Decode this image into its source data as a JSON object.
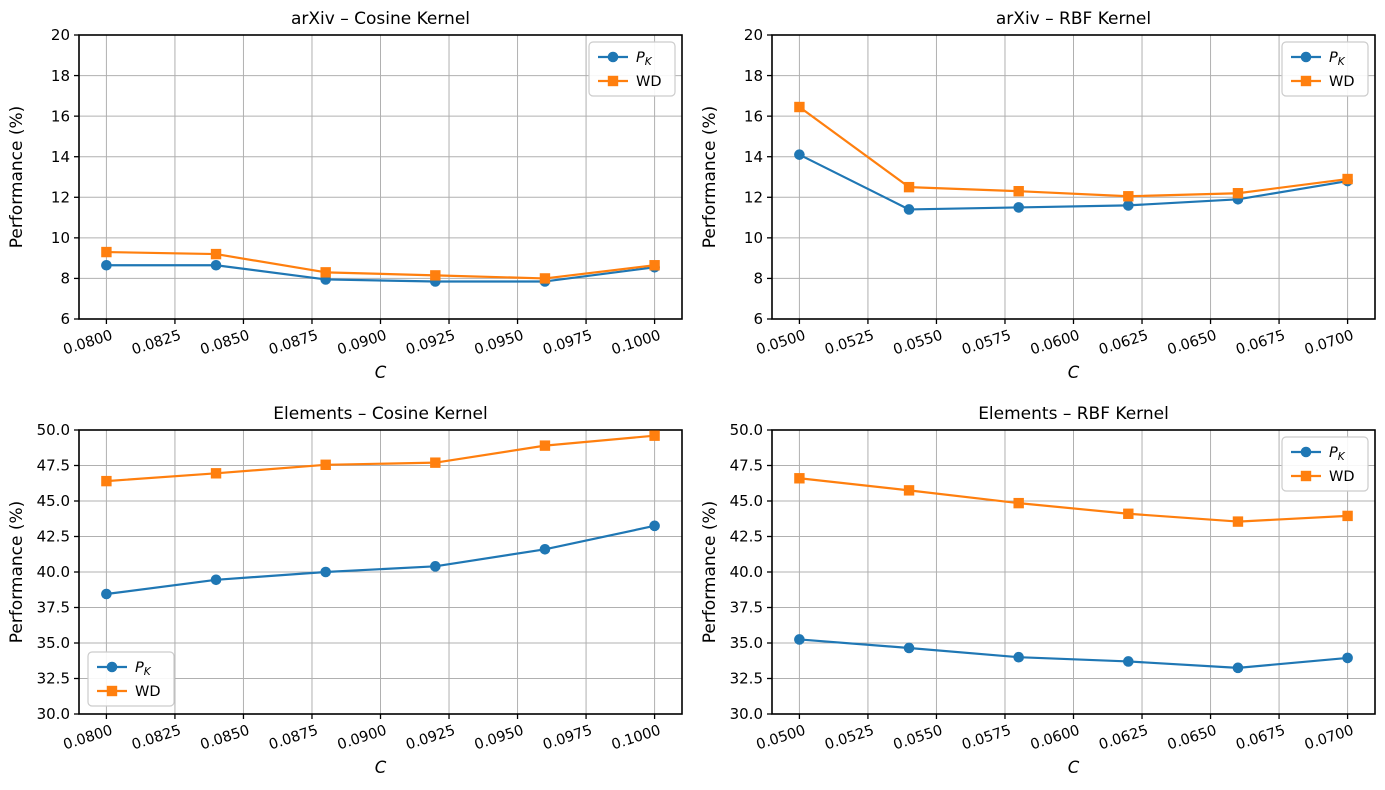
{
  "figure": {
    "background": "#ffffff",
    "colors": {
      "pk": "#1f77b4",
      "wd": "#ff7f0e",
      "grid": "#b0b0b0",
      "spine": "#000000",
      "text": "#000000",
      "legend_border": "#cccccc",
      "legend_bg": "#ffffff"
    }
  },
  "chart_data": [
    {
      "id": "arxiv-cosine",
      "type": "line",
      "title": "arXiv – Cosine Kernel",
      "xlabel": "C",
      "ylabel": "Performance (%)",
      "xlim": [
        0.079,
        0.101
      ],
      "ylim": [
        6,
        20
      ],
      "grid": true,
      "legend_position": "upper-right",
      "xticks": {
        "values": [
          0.08,
          0.0825,
          0.085,
          0.0875,
          0.09,
          0.0925,
          0.095,
          0.0975,
          0.1
        ],
        "labels": [
          "0.0800",
          "0.0825",
          "0.0850",
          "0.0875",
          "0.0900",
          "0.0925",
          "0.0950",
          "0.0975",
          "0.1000"
        ]
      },
      "yticks": {
        "values": [
          6,
          8,
          10,
          12,
          14,
          16,
          18,
          20
        ],
        "labels": [
          "6",
          "8",
          "10",
          "12",
          "14",
          "16",
          "18",
          "20"
        ]
      },
      "x": [
        0.08,
        0.084,
        0.088,
        0.092,
        0.096,
        0.1
      ],
      "series": [
        {
          "name": "P_K",
          "legend_main": "P",
          "legend_sub": "K",
          "color": "#1f77b4",
          "marker": "circle",
          "values": [
            8.65,
            8.65,
            7.95,
            7.85,
            7.85,
            8.55
          ]
        },
        {
          "name": "WD",
          "legend_main": "WD",
          "legend_sub": "",
          "color": "#ff7f0e",
          "marker": "square",
          "values": [
            9.3,
            9.2,
            8.3,
            8.15,
            8.0,
            8.65
          ]
        }
      ]
    },
    {
      "id": "arxiv-rbf",
      "type": "line",
      "title": "arXiv – RBF Kernel",
      "xlabel": "C",
      "ylabel": "Performance (%)",
      "xlim": [
        0.049,
        0.071
      ],
      "ylim": [
        6,
        20
      ],
      "grid": true,
      "legend_position": "upper-right",
      "xticks": {
        "values": [
          0.05,
          0.0525,
          0.055,
          0.0575,
          0.06,
          0.0625,
          0.065,
          0.0675,
          0.07
        ],
        "labels": [
          "0.0500",
          "0.0525",
          "0.0550",
          "0.0575",
          "0.0600",
          "0.0625",
          "0.0650",
          "0.0675",
          "0.0700"
        ]
      },
      "yticks": {
        "values": [
          6,
          8,
          10,
          12,
          14,
          16,
          18,
          20
        ],
        "labels": [
          "6",
          "8",
          "10",
          "12",
          "14",
          "16",
          "18",
          "20"
        ]
      },
      "x": [
        0.05,
        0.054,
        0.058,
        0.062,
        0.066,
        0.07
      ],
      "series": [
        {
          "name": "P_K",
          "legend_main": "P",
          "legend_sub": "K",
          "color": "#1f77b4",
          "marker": "circle",
          "values": [
            14.1,
            11.4,
            11.5,
            11.6,
            11.9,
            12.8
          ]
        },
        {
          "name": "WD",
          "legend_main": "WD",
          "legend_sub": "",
          "color": "#ff7f0e",
          "marker": "square",
          "values": [
            16.45,
            12.5,
            12.3,
            12.05,
            12.2,
            12.9
          ]
        }
      ]
    },
    {
      "id": "elements-cosine",
      "type": "line",
      "title": "Elements – Cosine Kernel",
      "xlabel": "C",
      "ylabel": "Performance (%)",
      "xlim": [
        0.079,
        0.101
      ],
      "ylim": [
        30,
        50
      ],
      "grid": true,
      "legend_position": "lower-left",
      "xticks": {
        "values": [
          0.08,
          0.0825,
          0.085,
          0.0875,
          0.09,
          0.0925,
          0.095,
          0.0975,
          0.1
        ],
        "labels": [
          "0.0800",
          "0.0825",
          "0.0850",
          "0.0875",
          "0.0900",
          "0.0925",
          "0.0950",
          "0.0975",
          "0.1000"
        ]
      },
      "yticks": {
        "values": [
          30,
          32.5,
          35,
          37.5,
          40,
          42.5,
          45,
          47.5,
          50
        ],
        "labels": [
          "30.0",
          "32.5",
          "35.0",
          "37.5",
          "40.0",
          "42.5",
          "45.0",
          "47.5",
          "50.0"
        ]
      },
      "x": [
        0.08,
        0.084,
        0.088,
        0.092,
        0.096,
        0.1
      ],
      "series": [
        {
          "name": "P_K",
          "legend_main": "P",
          "legend_sub": "K",
          "color": "#1f77b4",
          "marker": "circle",
          "values": [
            38.45,
            39.45,
            40.0,
            40.4,
            41.6,
            43.25
          ]
        },
        {
          "name": "WD",
          "legend_main": "WD",
          "legend_sub": "",
          "color": "#ff7f0e",
          "marker": "square",
          "values": [
            46.4,
            46.95,
            47.55,
            47.7,
            48.9,
            49.6
          ]
        }
      ]
    },
    {
      "id": "elements-rbf",
      "type": "line",
      "title": "Elements – RBF Kernel",
      "xlabel": "C",
      "ylabel": "Performance (%)",
      "xlim": [
        0.049,
        0.071
      ],
      "ylim": [
        30,
        50
      ],
      "grid": true,
      "legend_position": "upper-right",
      "xticks": {
        "values": [
          0.05,
          0.0525,
          0.055,
          0.0575,
          0.06,
          0.0625,
          0.065,
          0.0675,
          0.07
        ],
        "labels": [
          "0.0500",
          "0.0525",
          "0.0550",
          "0.0575",
          "0.0600",
          "0.0625",
          "0.0650",
          "0.0675",
          "0.0700"
        ]
      },
      "yticks": {
        "values": [
          30,
          32.5,
          35,
          37.5,
          40,
          42.5,
          45,
          47.5,
          50
        ],
        "labels": [
          "30.0",
          "32.5",
          "35.0",
          "37.5",
          "40.0",
          "42.5",
          "45.0",
          "47.5",
          "50.0"
        ]
      },
      "x": [
        0.05,
        0.054,
        0.058,
        0.062,
        0.066,
        0.07
      ],
      "series": [
        {
          "name": "P_K",
          "legend_main": "P",
          "legend_sub": "K",
          "color": "#1f77b4",
          "marker": "circle",
          "values": [
            35.25,
            34.65,
            34.0,
            33.7,
            33.25,
            33.95
          ]
        },
        {
          "name": "WD",
          "legend_main": "WD",
          "legend_sub": "",
          "color": "#ff7f0e",
          "marker": "square",
          "values": [
            46.6,
            45.75,
            44.85,
            44.1,
            43.55,
            43.95
          ]
        }
      ]
    }
  ]
}
